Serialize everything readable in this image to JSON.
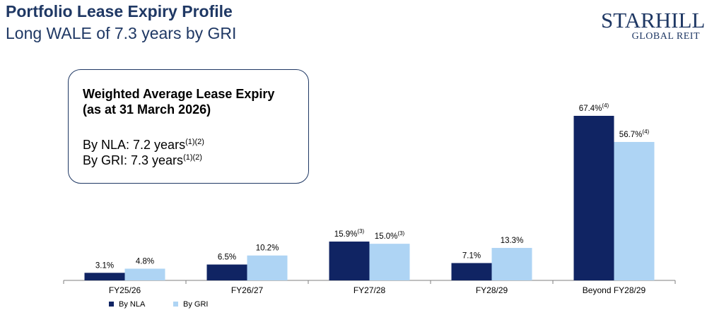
{
  "header": {
    "title": "Portfolio Lease Expiry Profile",
    "subtitle": "Long WALE of 7.3 years by GRI"
  },
  "logo": {
    "line1": "STARHILL",
    "line2": "GLOBAL REIT"
  },
  "wale_box": {
    "heading_line1": "Weighted Average Lease Expiry",
    "heading_line2": "(as at 31 March 2026)",
    "nla_text": "By NLA: 7.2 years",
    "nla_note": "(1)(2)",
    "gri_text": "By GRI: 7.3 years",
    "gri_note": "(1)(2)"
  },
  "colors": {
    "nla": "#102463",
    "gri": "#aed4f4",
    "brand": "#1f3864"
  },
  "chart_data": {
    "type": "bar",
    "categories": [
      "FY25/26",
      "FY26/27",
      "FY27/28",
      "FY28/29",
      "Beyond FY28/29"
    ],
    "series": [
      {
        "name": "By NLA",
        "values": [
          3.1,
          6.5,
          15.9,
          7.1,
          67.4
        ],
        "labels": [
          "3.1%",
          "6.5%",
          "15.9%",
          "7.1%",
          "67.4%"
        ],
        "notes": [
          "",
          "",
          "(3)",
          "",
          "(4)"
        ]
      },
      {
        "name": "By GRI",
        "values": [
          4.8,
          10.2,
          15.0,
          13.3,
          56.7
        ],
        "labels": [
          "4.8%",
          "10.2%",
          "15.0%",
          "13.3%",
          "56.7%"
        ],
        "notes": [
          "",
          "",
          "(3)",
          "",
          "(4)"
        ]
      }
    ],
    "ylim": [
      0,
      70
    ],
    "grid": false,
    "legend_position": "bottom-left"
  }
}
